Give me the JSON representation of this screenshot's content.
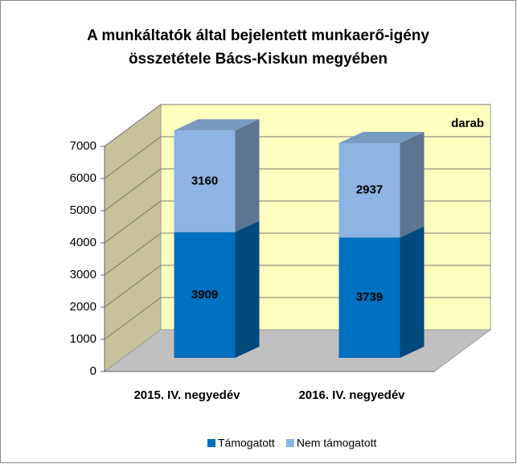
{
  "chart_data": {
    "type": "bar3d_stacked",
    "title": [
      "A munkáltatók által bejelentett munkaerő-igény",
      "összetétele Bács-Kiskun megyében"
    ],
    "unit": "darab",
    "categories": [
      "2015. IV. negyedév",
      "2016. IV. negyedév"
    ],
    "series": [
      {
        "name": "Támogatott",
        "color": "#0070c0",
        "values": [
          3909,
          3739
        ]
      },
      {
        "name": "Nem támogatott",
        "color": "#8db4e2",
        "values": [
          3160,
          2937
        ]
      }
    ],
    "ylim": [
      0,
      7000
    ],
    "yticks": [
      0,
      1000,
      2000,
      3000,
      4000,
      5000,
      6000,
      7000
    ],
    "grid": true,
    "legend": "bottom"
  }
}
